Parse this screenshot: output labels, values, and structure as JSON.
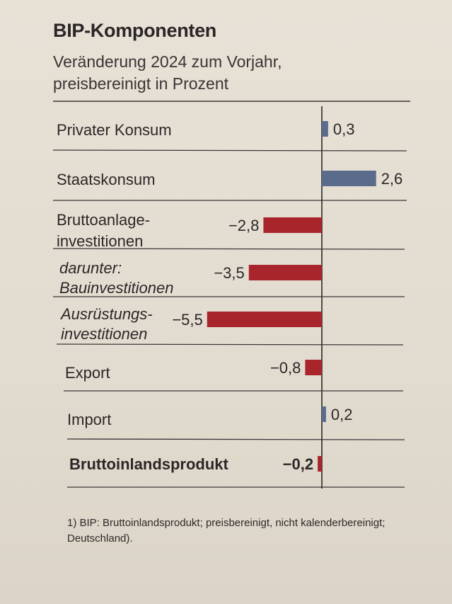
{
  "header": {
    "title": "BIP-Komponenten",
    "subtitle_line1": "Veränderung 2024 zum Vorjahr,",
    "subtitle_line2": "preisbereinigt in Prozent"
  },
  "footnote": {
    "line1": "1) BIP: Bruttoinlandsprodukt; preisbereinigt, nicht kalenderbereinigt;",
    "line2": "Deutschland)."
  },
  "chart_data": {
    "type": "bar",
    "orientation": "horizontal",
    "title": "BIP-Komponenten",
    "subtitle": "Veränderung 2024 zum Vorjahr, preisbereinigt in Prozent",
    "xlim": [
      -5.5,
      3.0
    ],
    "colors": {
      "positive": "#5a6b8c",
      "negative": "#a8262b",
      "axis": "#2b2727",
      "separator": "#3a3636"
    },
    "rows": [
      {
        "label_lines": [
          "Privater Konsum"
        ],
        "value": 0.3,
        "value_label": "0,3",
        "style": "normal"
      },
      {
        "label_lines": [
          "Staatskonsum"
        ],
        "value": 2.6,
        "value_label": "2,6",
        "style": "normal"
      },
      {
        "label_lines": [
          "Bruttoanlage-",
          "investitionen"
        ],
        "value": -2.8,
        "value_label": "−2,8",
        "style": "normal"
      },
      {
        "label_lines": [
          "darunter:",
          "Bauinvestitionen"
        ],
        "value": -3.5,
        "value_label": "−3,5",
        "style": "italic"
      },
      {
        "label_lines": [
          "Ausrüstungs-",
          "investitionen"
        ],
        "value": -5.5,
        "value_label": "−5,5",
        "style": "italic"
      },
      {
        "label_lines": [
          "Export"
        ],
        "value": -0.8,
        "value_label": "−0,8",
        "style": "normal"
      },
      {
        "label_lines": [
          "Import"
        ],
        "value": 0.2,
        "value_label": "0,2",
        "style": "normal"
      },
      {
        "label_lines": [
          "Bruttoinlandsprodukt"
        ],
        "value": -0.2,
        "value_label": "−0,2",
        "style": "bold"
      }
    ]
  }
}
